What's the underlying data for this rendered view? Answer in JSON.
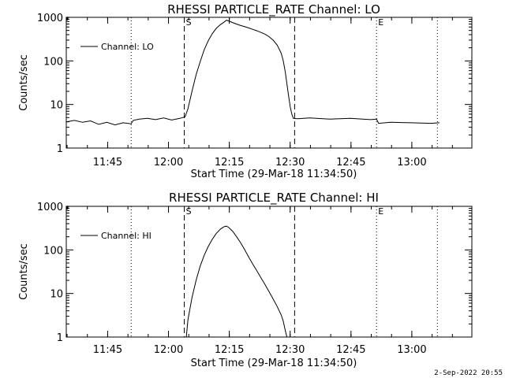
{
  "footer": {
    "timestamp": "2-Sep-2022 20:55"
  },
  "chart_data": [
    {
      "type": "line",
      "title": "RHESSI PARTICLE_RATE Channel: LO",
      "xlabel": "Start Time (29-Mar-18 11:34:50)",
      "ylabel": "Counts/sec",
      "yscale": "log",
      "ylim": [
        1,
        1000
      ],
      "xlim_minutes": [
        0,
        100
      ],
      "x_ticks": [
        {
          "value": 10.2,
          "label": "11:45"
        },
        {
          "value": 25.2,
          "label": "12:00"
        },
        {
          "value": 40.2,
          "label": "12:15"
        },
        {
          "value": 55.2,
          "label": "12:30"
        },
        {
          "value": 70.2,
          "label": "12:45"
        },
        {
          "value": 85.2,
          "label": "13:00"
        }
      ],
      "y_ticks": [
        {
          "value": 1,
          "label": "1"
        },
        {
          "value": 10,
          "label": "10"
        },
        {
          "value": 100,
          "label": "100"
        },
        {
          "value": 1000,
          "label": "1000"
        }
      ],
      "vlines": [
        {
          "x": 16.0,
          "style": "dotted"
        },
        {
          "x": 29.1,
          "style": "dashed",
          "label": "S"
        },
        {
          "x": 56.3,
          "style": "dashed"
        },
        {
          "x": 76.5,
          "style": "dotted",
          "label": "E"
        },
        {
          "x": 91.5,
          "style": "dotted"
        }
      ],
      "series": [
        {
          "name": "Channel: LO",
          "x": [
            0,
            2,
            4,
            6,
            8,
            10,
            12,
            14,
            16,
            16.5,
            18,
            20,
            22,
            24,
            26,
            28,
            29.3,
            30,
            31,
            32,
            33,
            34,
            35,
            36,
            37,
            38,
            39,
            39.5,
            40,
            41,
            42,
            43,
            44,
            45,
            46,
            47,
            48,
            49,
            50,
            51,
            52,
            53,
            53.5,
            54,
            54.6,
            55.2,
            55.6,
            56,
            57,
            60,
            65,
            70,
            75,
            76.5,
            77,
            80,
            85,
            90,
            92
          ],
          "y": [
            4.0,
            4.3,
            3.9,
            4.2,
            3.5,
            3.9,
            3.4,
            3.8,
            3.6,
            4.3,
            4.6,
            4.8,
            4.5,
            4.9,
            4.4,
            4.8,
            5.2,
            8,
            20,
            48,
            95,
            180,
            290,
            420,
            560,
            680,
            790,
            860,
            830,
            760,
            700,
            650,
            610,
            570,
            530,
            490,
            450,
            410,
            360,
            300,
            230,
            150,
            100,
            55,
            22,
            9,
            6,
            4.8,
            4.7,
            4.9,
            4.6,
            4.8,
            4.5,
            4.6,
            3.7,
            3.9,
            3.8,
            3.7,
            3.8
          ]
        }
      ]
    },
    {
      "type": "line",
      "title": "RHESSI PARTICLE_RATE Channel: HI",
      "xlabel": "Start Time (29-Mar-18 11:34:50)",
      "ylabel": "Counts/sec",
      "yscale": "log",
      "ylim": [
        1,
        1000
      ],
      "xlim_minutes": [
        0,
        100
      ],
      "x_ticks": [
        {
          "value": 10.2,
          "label": "11:45"
        },
        {
          "value": 25.2,
          "label": "12:00"
        },
        {
          "value": 40.2,
          "label": "12:15"
        },
        {
          "value": 55.2,
          "label": "12:30"
        },
        {
          "value": 70.2,
          "label": "12:45"
        },
        {
          "value": 85.2,
          "label": "13:00"
        }
      ],
      "y_ticks": [
        {
          "value": 1,
          "label": "1"
        },
        {
          "value": 10,
          "label": "10"
        },
        {
          "value": 100,
          "label": "100"
        },
        {
          "value": 1000,
          "label": "1000"
        }
      ],
      "vlines": [
        {
          "x": 16.0,
          "style": "dotted"
        },
        {
          "x": 29.1,
          "style": "dashed",
          "label": "S"
        },
        {
          "x": 56.3,
          "style": "dashed"
        },
        {
          "x": 76.5,
          "style": "dotted",
          "label": "E"
        },
        {
          "x": 91.5,
          "style": "dotted"
        }
      ],
      "series": [
        {
          "name": "Channel: HI",
          "x": [
            29.6,
            30,
            31,
            32,
            33,
            34,
            35,
            36,
            37,
            38,
            39,
            39.5,
            40,
            41,
            42,
            43,
            44,
            45,
            46,
            47,
            48,
            49,
            50,
            51,
            52,
            53,
            53.5,
            54,
            54.4
          ],
          "y": [
            1,
            2.5,
            8,
            20,
            42,
            75,
            120,
            175,
            240,
            300,
            345,
            350,
            330,
            270,
            200,
            145,
            100,
            68,
            47,
            33,
            23,
            16,
            11,
            7.5,
            5,
            3.2,
            2.3,
            1.4,
            1
          ]
        }
      ]
    }
  ]
}
